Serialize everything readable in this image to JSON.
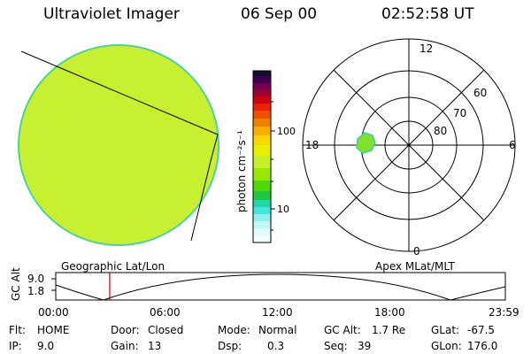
{
  "header": {
    "instrument": "Ultraviolet Imager",
    "date": "06 Sep 00",
    "time": "02:52:58 UT"
  },
  "colorbar": {
    "unit_label": "photon cm⁻²s⁻¹",
    "ticks": [
      "100",
      "10"
    ]
  },
  "polar_plot": {
    "mlt_labels": {
      "top": "12",
      "left": "18",
      "right": "6",
      "bottom": "0"
    },
    "lat_labels": [
      "60",
      "70",
      "80"
    ]
  },
  "altitude_plot": {
    "left_label": "Geographic Lat/Lon",
    "right_label": "Apex MLat/MLT",
    "axis_title": "GC Alt",
    "y_ticks": [
      "9.0",
      "1.8"
    ],
    "x_ticks": [
      "00:00",
      "06:00",
      "12:00",
      "18:00",
      "23:59"
    ],
    "marker_time_hours": 2.88
  },
  "status": {
    "row1": [
      {
        "key": "Flt:",
        "value": "HOME"
      },
      {
        "key": "Door:",
        "value": "Closed"
      },
      {
        "key": "Mode:",
        "value": "Normal"
      },
      {
        "key": "GC Alt:",
        "value": "1.7 Re"
      },
      {
        "key": "GLat:",
        "value": "-67.5"
      }
    ],
    "row2": [
      {
        "key": "IP:",
        "value": "9.0"
      },
      {
        "key": "Gain:",
        "value": "13"
      },
      {
        "key": "Dsp:",
        "value": "0.3"
      },
      {
        "key": "Seq:",
        "value": "39"
      },
      {
        "key": "GLon:",
        "value": "176.0"
      }
    ]
  },
  "colors": {
    "disk_fill": "#c8f028",
    "disk_edge": "#40d0a0",
    "marker": "#c00000"
  }
}
